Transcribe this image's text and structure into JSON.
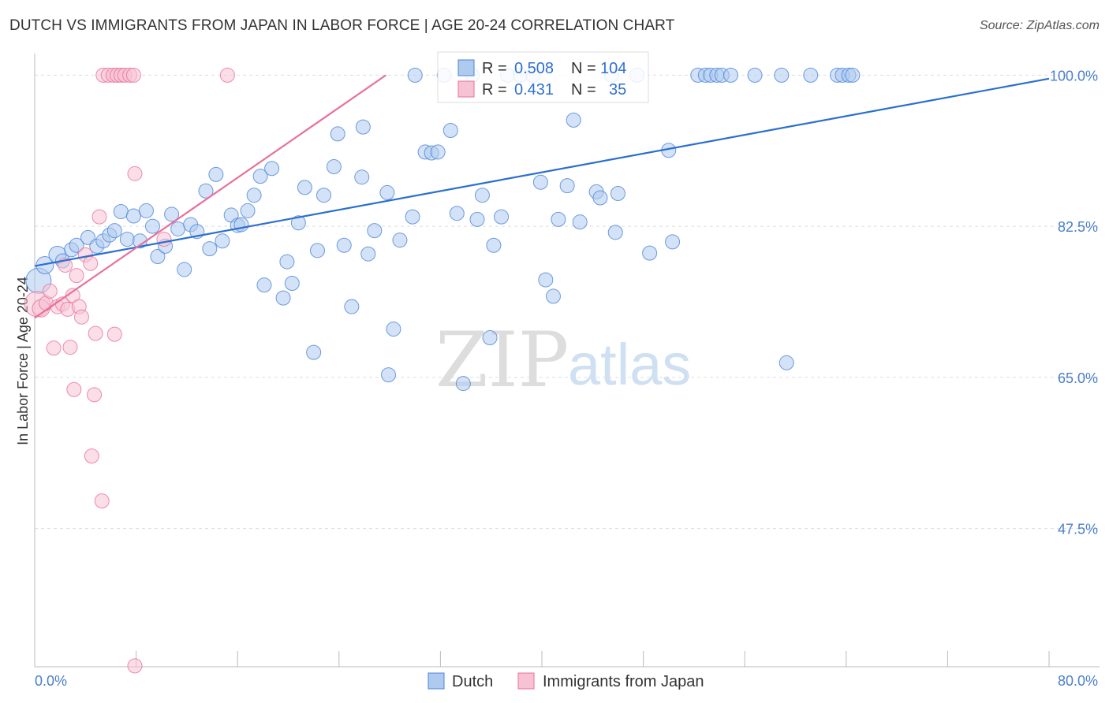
{
  "title": "DUTCH VS IMMIGRANTS FROM JAPAN IN LABOR FORCE | AGE 20-24 CORRELATION CHART",
  "source": "Source: ZipAtlas.com",
  "watermark": {
    "zip": "ZIP",
    "atlas": "atlas"
  },
  "colors": {
    "blue": "#4a85d8",
    "blue_fill": "#aecbef",
    "pink": "#e8709a",
    "pink_fill": "#f7c3d4",
    "grid": "#dddddd"
  },
  "chart_data": {
    "type": "scatter",
    "title": "DUTCH VS IMMIGRANTS FROM JAPAN IN LABOR FORCE | AGE 20-24 CORRELATION CHART",
    "xlabel": "",
    "ylabel": "In Labor Force | Age 20-24",
    "xlim": [
      0,
      80
    ],
    "ylim": [
      31.5,
      102.5
    ],
    "x_tick_labels": [
      "0.0%",
      "80.0%"
    ],
    "y_ticks": [
      47.5,
      65.0,
      82.5,
      100.0
    ],
    "y_tick_labels": [
      "47.5%",
      "65.0%",
      "82.5%",
      "100.0%"
    ],
    "legend": {
      "r_label": "R =",
      "n_label": "N =",
      "entries": [
        {
          "name": "Dutch",
          "r": "0.508",
          "n": "104",
          "color": "blue"
        },
        {
          "name": "Immigrants from Japan",
          "r": "0.431",
          "n": "35",
          "color": "pink"
        }
      ]
    },
    "series": [
      {
        "name": "Dutch",
        "color": "blue",
        "trend": {
          "x": [
            0,
            80
          ],
          "y": [
            77.9,
            99.6
          ]
        },
        "points": [
          [
            0.3,
            76.2,
            16
          ],
          [
            0.8,
            78.0,
            11
          ],
          [
            1.8,
            79.2,
            11
          ],
          [
            2.2,
            78.5,
            9
          ],
          [
            2.9,
            79.8,
            9
          ],
          [
            3.3,
            80.3,
            9
          ],
          [
            4.2,
            81.2,
            9
          ],
          [
            4.9,
            80.2,
            9
          ],
          [
            5.4,
            80.8,
            9
          ],
          [
            5.9,
            81.5,
            9
          ],
          [
            6.3,
            82.0,
            9
          ],
          [
            6.8,
            84.2,
            9
          ],
          [
            7.3,
            81.0,
            9
          ],
          [
            7.8,
            83.7,
            9
          ],
          [
            8.3,
            80.8,
            9
          ],
          [
            8.8,
            84.3,
            9
          ],
          [
            9.3,
            82.5,
            9
          ],
          [
            9.7,
            79.0,
            9
          ],
          [
            10.3,
            80.2,
            9
          ],
          [
            10.8,
            83.9,
            9
          ],
          [
            11.3,
            82.2,
            9
          ],
          [
            11.8,
            77.5,
            9
          ],
          [
            12.3,
            82.7,
            9
          ],
          [
            12.8,
            81.9,
            9
          ],
          [
            13.5,
            86.6,
            9
          ],
          [
            13.8,
            79.9,
            9
          ],
          [
            14.3,
            88.5,
            9
          ],
          [
            14.8,
            80.8,
            9
          ],
          [
            15.5,
            83.8,
            9
          ],
          [
            16.0,
            82.6,
            9
          ],
          [
            16.3,
            82.7,
            9
          ],
          [
            16.8,
            84.3,
            9
          ],
          [
            17.3,
            86.1,
            9
          ],
          [
            17.8,
            88.3,
            9
          ],
          [
            18.1,
            75.7,
            9
          ],
          [
            18.7,
            89.2,
            9
          ],
          [
            19.6,
            74.2,
            9
          ],
          [
            19.9,
            78.4,
            9
          ],
          [
            20.3,
            75.9,
            9
          ],
          [
            20.8,
            82.9,
            9
          ],
          [
            21.3,
            87.0,
            9
          ],
          [
            22.0,
            67.9,
            9
          ],
          [
            22.3,
            79.7,
            9
          ],
          [
            22.8,
            86.1,
            9
          ],
          [
            23.6,
            89.4,
            9
          ],
          [
            23.9,
            93.2,
            9
          ],
          [
            24.4,
            80.3,
            9
          ],
          [
            25.0,
            73.2,
            9
          ],
          [
            25.8,
            88.2,
            9
          ],
          [
            25.9,
            94.0,
            9
          ],
          [
            26.3,
            79.3,
            9
          ],
          [
            26.8,
            82.0,
            9
          ],
          [
            27.8,
            86.4,
            9
          ],
          [
            27.9,
            65.3,
            9
          ],
          [
            28.3,
            70.6,
            9
          ],
          [
            28.8,
            80.9,
            9
          ],
          [
            29.8,
            83.6,
            9
          ],
          [
            30.0,
            100.0,
            9
          ],
          [
            30.8,
            91.1,
            9
          ],
          [
            31.3,
            91.0,
            9
          ],
          [
            31.8,
            91.1,
            9
          ],
          [
            32.3,
            100.0,
            9
          ],
          [
            32.8,
            93.6,
            9
          ],
          [
            33.3,
            84.0,
            9
          ],
          [
            33.8,
            64.3,
            9
          ],
          [
            34.5,
            100.0,
            9
          ],
          [
            34.9,
            83.3,
            9
          ],
          [
            35.3,
            86.1,
            9
          ],
          [
            35.9,
            69.6,
            9
          ],
          [
            36.2,
            80.3,
            9
          ],
          [
            36.8,
            83.6,
            9
          ],
          [
            37.3,
            100.0,
            9
          ],
          [
            38.3,
            100.0,
            9
          ],
          [
            39.3,
            100.0,
            9
          ],
          [
            39.9,
            87.6,
            9
          ],
          [
            40.3,
            76.3,
            9
          ],
          [
            40.9,
            74.4,
            9
          ],
          [
            41.3,
            83.3,
            9
          ],
          [
            42.0,
            87.2,
            9
          ],
          [
            42.5,
            94.8,
            9
          ],
          [
            43.0,
            83.0,
            9
          ],
          [
            44.3,
            86.5,
            9
          ],
          [
            44.6,
            85.8,
            9
          ],
          [
            45.5,
            100.0,
            9
          ],
          [
            45.8,
            81.8,
            9
          ],
          [
            46.0,
            86.3,
            9
          ],
          [
            47.5,
            100.0,
            9
          ],
          [
            48.5,
            79.4,
            9
          ],
          [
            50.0,
            91.3,
            9
          ],
          [
            50.3,
            80.7,
            9
          ],
          [
            52.3,
            100.0,
            9
          ],
          [
            52.9,
            100.0,
            9
          ],
          [
            53.3,
            100.0,
            9
          ],
          [
            53.8,
            100.0,
            9
          ],
          [
            54.2,
            100.0,
            9
          ],
          [
            54.9,
            100.0,
            9
          ],
          [
            56.8,
            100.0,
            9
          ],
          [
            58.9,
            100.0,
            9
          ],
          [
            59.3,
            66.7,
            9
          ],
          [
            61.2,
            100.0,
            9
          ],
          [
            63.3,
            100.0,
            9
          ],
          [
            63.7,
            100.0,
            9
          ],
          [
            64.2,
            100.0,
            9
          ],
          [
            64.5,
            100.0,
            9
          ]
        ]
      },
      {
        "name": "Immigrants from Japan",
        "color": "pink",
        "trend": {
          "x": [
            0,
            27.7
          ],
          "y": [
            71.9,
            100.0
          ]
        },
        "points": [
          [
            0.2,
            73.5,
            16
          ],
          [
            0.5,
            73.0,
            11
          ],
          [
            0.9,
            73.6,
            9
          ],
          [
            1.2,
            75.0,
            9
          ],
          [
            1.5,
            68.4,
            9
          ],
          [
            1.8,
            73.2,
            9
          ],
          [
            2.2,
            73.5,
            9
          ],
          [
            2.4,
            78.0,
            9
          ],
          [
            2.6,
            72.9,
            9
          ],
          [
            2.8,
            68.5,
            9
          ],
          [
            3.0,
            74.5,
            9
          ],
          [
            3.1,
            63.6,
            9
          ],
          [
            3.3,
            76.8,
            9
          ],
          [
            3.5,
            73.2,
            9
          ],
          [
            3.7,
            72.0,
            9
          ],
          [
            4.0,
            79.2,
            9
          ],
          [
            4.4,
            78.2,
            9
          ],
          [
            4.5,
            55.9,
            9
          ],
          [
            4.7,
            63.0,
            9
          ],
          [
            4.8,
            70.1,
            9
          ],
          [
            5.1,
            83.6,
            9
          ],
          [
            5.3,
            50.7,
            9
          ],
          [
            5.4,
            100.0,
            9
          ],
          [
            5.8,
            100.0,
            9
          ],
          [
            6.2,
            100.0,
            9
          ],
          [
            6.3,
            70.0,
            9
          ],
          [
            6.5,
            100.0,
            9
          ],
          [
            6.8,
            100.0,
            9
          ],
          [
            7.1,
            100.0,
            9
          ],
          [
            7.5,
            100.0,
            9
          ],
          [
            7.8,
            100.0,
            9
          ],
          [
            7.9,
            31.6,
            9
          ],
          [
            7.9,
            88.6,
            9
          ],
          [
            10.2,
            81.0,
            9
          ],
          [
            15.2,
            100.0,
            9
          ]
        ]
      }
    ]
  }
}
